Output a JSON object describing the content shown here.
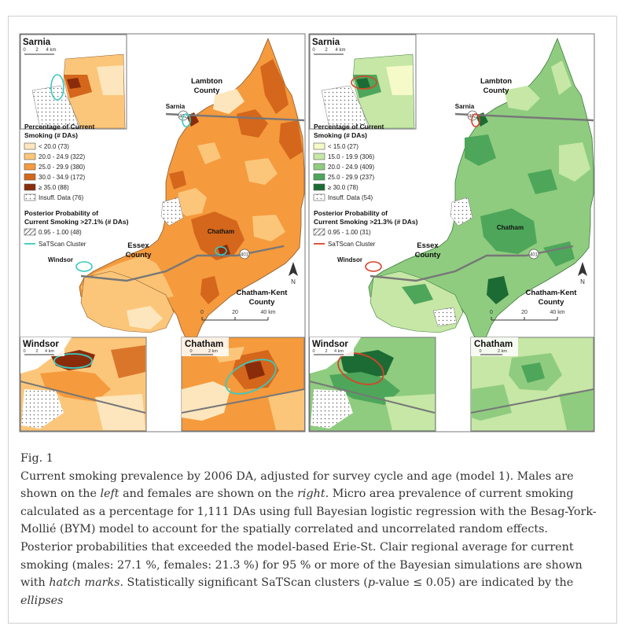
{
  "panels": {
    "left": {
      "legend_title_1": "Percentage of Current",
      "legend_title_2": "Smoking (# DAs)",
      "classes": [
        {
          "label": "< 20.0 (73)",
          "color": "#fde6bd"
        },
        {
          "label": "20.0 - 24.9 (322)",
          "color": "#fcc67a"
        },
        {
          "label": "25.0 - 29.9 (380)",
          "color": "#f59a3d"
        },
        {
          "label": "30.0 - 34.9 (172)",
          "color": "#d4671c"
        },
        {
          "label": "≥ 35.0 (88)",
          "color": "#8a2c0a"
        },
        {
          "label": "Insuff. Data (76)",
          "color": "#ffffff"
        }
      ],
      "post_title_1": "Posterior Probability of",
      "post_title_2": "Current Smoking >27.1% (# DAs)",
      "post_label": "0.95 - 1.00 (48)",
      "cluster_label": "SaTScan Cluster",
      "cluster_color": "#39c9c0"
    },
    "right": {
      "legend_title_1": "Percentage of Current",
      "legend_title_2": "Smoking (# DAs)",
      "classes": [
        {
          "label": "< 15.0 (27)",
          "color": "#f6f9c8"
        },
        {
          "label": "15.0 - 19.9 (306)",
          "color": "#c6e7a6"
        },
        {
          "label": "20.0 - 24.9 (409)",
          "color": "#8fcc80"
        },
        {
          "label": "25.0 - 29.9 (237)",
          "color": "#4ea65a"
        },
        {
          "label": "≥ 30.0 (78)",
          "color": "#1d6b34"
        },
        {
          "label": "Insuff. Data (54)",
          "color": "#ffffff"
        }
      ],
      "post_title_1": "Posterior Probability of",
      "post_title_2": "Current Smoking >21.3% (# DAs)",
      "post_label": "0.95 - 1.00 (31)",
      "cluster_label": "SaTScan Cluster",
      "cluster_color": "#d8432a"
    }
  },
  "places": {
    "sarnia": "Sarnia",
    "lambton_1": "Lambton",
    "lambton_2": "County",
    "essex_1": "Essex",
    "essex_2": "County",
    "chatham": "Chatham",
    "chatham_kent_1": "Chatham-Kent",
    "chatham_kent_2": "County",
    "windsor": "Windsor"
  },
  "scale": {
    "zero": "0",
    "twenty": "20",
    "forty": "40 km",
    "inset_zero": "0",
    "inset_two": "2",
    "inset_four": "4 km",
    "inset_2km": "2 km"
  },
  "north": "N",
  "highways": {
    "h402": "402",
    "h401": "401"
  },
  "caption": {
    "figlabel": "Fig. 1",
    "p1": "Current smoking prevalence by 2006 DA, adjusted for survey cycle and age (model 1). Males are shown on the ",
    "left": "left",
    "p2": " and females are shown on the ",
    "right": "right",
    "p3": ". Micro area prevalence of current smoking calculated as a percentage for 1,111 DAs using full Bayesian logistic regression with the Besag-York-Mollié (BYM) model to account for the spatially correlated and uncorrelated random effects. Posterior probabilities that exceeded the model-based Erie-St. Clair regional average for current smoking (males: 27.1 %, females: 21.3 %) for 95 % or more of the Bayesian simulations are shown with ",
    "hatch": "hatch marks",
    "p4": ". Statistically significant SaTScan clusters (",
    "pvalue": "p",
    "p5": "-value ≤ 0.05) are indicated by the ",
    "ellipses": "ellipses"
  }
}
